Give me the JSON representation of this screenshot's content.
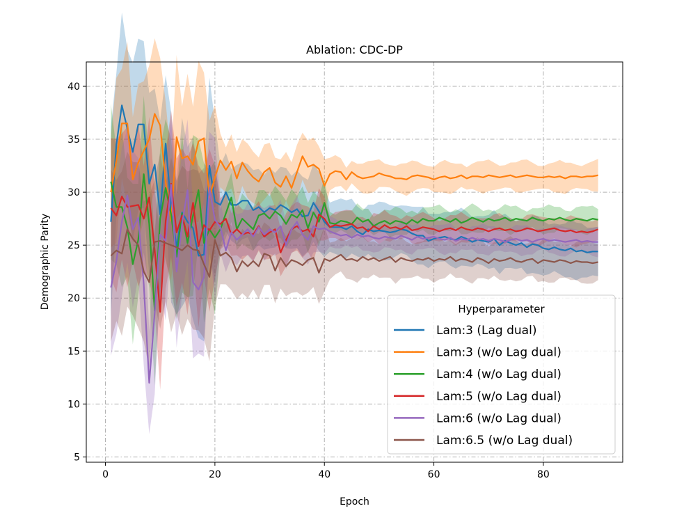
{
  "chart_data": {
    "type": "line",
    "title": "Ablation: CDC-DP",
    "xlabel": "Epoch",
    "ylabel": "Demographic Parity",
    "xlim": [
      -3.5,
      94.5
    ],
    "ylim": [
      4.5,
      42.3
    ],
    "xticks": [
      0,
      20,
      40,
      60,
      80
    ],
    "yticks": [
      5,
      10,
      15,
      20,
      25,
      30,
      35,
      40
    ],
    "grid": true,
    "legend_title": "Hyperparameter",
    "legend_position": "lower right",
    "series": [
      {
        "name": "Lam:3 (Lag dual)",
        "color": "#1f77b4",
        "band": 2.5,
        "values": [
          27.2,
          34.5,
          38.2,
          36.0,
          33.8,
          36.4,
          36.4,
          30.8,
          32.6,
          27.9,
          34.6,
          28.6,
          24.8,
          28.1,
          27.2,
          26.6,
          24.0,
          24.1,
          32.5,
          29.1,
          28.8,
          30.0,
          28.8,
          28.8,
          29.2,
          29.2,
          28.3,
          28.6,
          28.1,
          28.5,
          28.3,
          28.8,
          28.5,
          28.1,
          28.4,
          27.7,
          27.8,
          29.0,
          28.2,
          27.2,
          26.7,
          26.7,
          26.7,
          26.5,
          26.8,
          26.3,
          26.0,
          26.5,
          26.3,
          26.4,
          26.3,
          26.2,
          26.3,
          26.5,
          26.4,
          26.1,
          25.9,
          25.9,
          25.4,
          25.6,
          25.7,
          25.8,
          25.6,
          25.5,
          25.8,
          25.6,
          25.3,
          25.5,
          25.4,
          25.3,
          25.6,
          25.0,
          25.4,
          25.2,
          25.0,
          25.2,
          24.8,
          25.1,
          25.0,
          24.7,
          24.6,
          24.8,
          24.6,
          24.5,
          24.7,
          24.4,
          24.5,
          24.3,
          24.4,
          24.4
        ]
      },
      {
        "name": "Lam:3 (w/o Lag dual)",
        "color": "#ff7f0e",
        "band": 1.3,
        "values": [
          30.0,
          33.0,
          36.5,
          36.5,
          31.2,
          32.8,
          33.9,
          35.0,
          37.4,
          36.3,
          31.0,
          27.3,
          35.2,
          33.2,
          33.4,
          32.6,
          34.8,
          35.1,
          29.5,
          31.4,
          33.0,
          32.1,
          32.9,
          31.3,
          32.8,
          32.0,
          31.4,
          31.0,
          31.9,
          32.3,
          30.9,
          30.5,
          31.5,
          30.4,
          31.9,
          33.4,
          32.4,
          32.6,
          32.2,
          30.6,
          31.7,
          32.0,
          31.9,
          31.2,
          31.9,
          31.5,
          31.3,
          31.4,
          31.5,
          31.8,
          31.6,
          31.5,
          31.3,
          31.3,
          31.2,
          31.5,
          31.6,
          31.5,
          31.4,
          31.2,
          31.4,
          31.5,
          31.3,
          31.4,
          31.6,
          31.3,
          31.5,
          31.5,
          31.4,
          31.6,
          31.5,
          31.4,
          31.5,
          31.6,
          31.4,
          31.5,
          31.6,
          31.5,
          31.4,
          31.4,
          31.5,
          31.4,
          31.5,
          31.3,
          31.5,
          31.5,
          31.4,
          31.5,
          31.5,
          31.6
        ]
      },
      {
        "name": "Lam:4 (w/o Lag dual)",
        "color": "#2ca02c",
        "band": 1.1,
        "values": [
          31.0,
          28.6,
          28.6,
          26.7,
          23.2,
          25.5,
          31.7,
          27.0,
          18.8,
          27.5,
          30.4,
          27.9,
          23.9,
          28.0,
          25.2,
          27.8,
          30.2,
          25.2,
          26.5,
          25.7,
          26.5,
          28.0,
          29.5,
          26.5,
          27.5,
          27.0,
          26.5,
          27.8,
          28.0,
          27.5,
          28.2,
          27.8,
          27.0,
          27.9,
          27.6,
          28.3,
          26.6,
          28.1,
          27.2,
          29.0,
          27.1,
          27.0,
          27.3,
          27.2,
          27.0,
          27.6,
          27.2,
          27.4,
          26.8,
          27.1,
          27.3,
          27.0,
          27.3,
          27.2,
          27.0,
          27.4,
          27.1,
          27.5,
          27.3,
          27.3,
          27.6,
          27.4,
          27.2,
          27.5,
          27.1,
          27.3,
          27.6,
          27.4,
          27.2,
          27.5,
          27.3,
          27.4,
          27.6,
          27.3,
          27.5,
          27.4,
          27.3,
          27.6,
          27.4,
          27.3,
          27.5,
          27.4,
          27.6,
          27.4,
          27.3,
          27.5,
          27.4,
          27.3,
          27.5,
          27.4
        ]
      },
      {
        "name": "Lam:5 (w/o Lag dual)",
        "color": "#d62728",
        "band": 1.2,
        "values": [
          28.5,
          27.8,
          29.6,
          28.6,
          28.7,
          28.8,
          27.5,
          29.5,
          24.5,
          18.7,
          27.3,
          30.8,
          26.2,
          27.8,
          25.8,
          29.0,
          24.9,
          26.9,
          26.4,
          27.2,
          27.0,
          27.5,
          26.0,
          26.5,
          26.0,
          26.2,
          26.0,
          26.8,
          25.8,
          26.2,
          26.5,
          24.3,
          25.5,
          26.5,
          26.8,
          26.3,
          26.5,
          25.8,
          27.9,
          27.5,
          26.7,
          26.9,
          26.8,
          26.9,
          27.0,
          26.6,
          26.7,
          26.3,
          26.8,
          26.5,
          26.9,
          26.6,
          26.7,
          26.5,
          26.8,
          26.4,
          26.5,
          26.7,
          26.6,
          26.5,
          26.3,
          26.5,
          26.6,
          26.4,
          26.7,
          26.5,
          26.4,
          26.6,
          26.5,
          26.3,
          26.5,
          26.6,
          26.4,
          26.5,
          26.3,
          26.4,
          26.6,
          26.5,
          26.3,
          26.4,
          26.5,
          26.6,
          26.4,
          26.3,
          26.4,
          26.2,
          26.3,
          26.2,
          26.3,
          26.5
        ]
      },
      {
        "name": "Lam:6 (w/o Lag dual)",
        "color": "#9467bd",
        "band": 1.2,
        "values": [
          21.0,
          23.5,
          27.2,
          29.7,
          26.5,
          27.6,
          21.3,
          12.0,
          18.6,
          26.0,
          25.4,
          30.7,
          22.5,
          27.0,
          30.2,
          21.5,
          20.8,
          22.0,
          30.4,
          27.4,
          26.7,
          24.5,
          26.2,
          25.5,
          26.0,
          26.5,
          25.8,
          26.7,
          26.0,
          26.5,
          26.2,
          26.8,
          25.0,
          26.5,
          27.2,
          26.0,
          25.5,
          26.8,
          26.5,
          26.6,
          26.3,
          26.1,
          25.9,
          26.0,
          25.7,
          26.0,
          25.8,
          25.9,
          25.7,
          25.6,
          25.8,
          25.7,
          25.6,
          25.9,
          25.7,
          25.5,
          25.8,
          25.6,
          25.7,
          25.8,
          25.6,
          25.5,
          25.7,
          25.4,
          25.6,
          25.5,
          25.7,
          25.5,
          25.6,
          25.4,
          25.6,
          25.5,
          25.3,
          25.5,
          25.6,
          25.4,
          25.5,
          25.3,
          25.5,
          25.6,
          25.4,
          25.5,
          25.4,
          25.3,
          25.4,
          25.5,
          25.3,
          25.4,
          25.3,
          25.3
        ]
      },
      {
        "name": "Lam:6.5 (w/o Lag dual)",
        "color": "#8c564b",
        "band": 1.8,
        "values": [
          24.0,
          24.5,
          24.2,
          26.5,
          25.6,
          25.0,
          22.5,
          21.5,
          25.3,
          25.4,
          25.2,
          25.0,
          24.8,
          24.5,
          25.0,
          24.6,
          24.5,
          23.2,
          22.0,
          25.5,
          24.0,
          24.3,
          23.8,
          22.5,
          23.5,
          23.0,
          23.5,
          23.0,
          24.2,
          24.0,
          22.6,
          23.8,
          23.0,
          23.6,
          23.4,
          23.1,
          23.6,
          23.8,
          22.4,
          23.7,
          23.5,
          23.8,
          24.1,
          23.6,
          23.7,
          23.5,
          23.9,
          23.6,
          23.8,
          23.5,
          23.7,
          23.9,
          23.4,
          23.8,
          23.6,
          23.5,
          23.7,
          23.6,
          23.8,
          23.5,
          23.7,
          23.6,
          23.9,
          23.5,
          23.7,
          23.6,
          23.4,
          23.8,
          23.6,
          23.3,
          23.7,
          23.5,
          23.6,
          23.8,
          23.5,
          23.4,
          23.6,
          23.7,
          23.3,
          23.6,
          23.5,
          23.4,
          23.6,
          23.5,
          23.3,
          23.5,
          23.4,
          23.4,
          23.3,
          23.4
        ]
      }
    ]
  }
}
